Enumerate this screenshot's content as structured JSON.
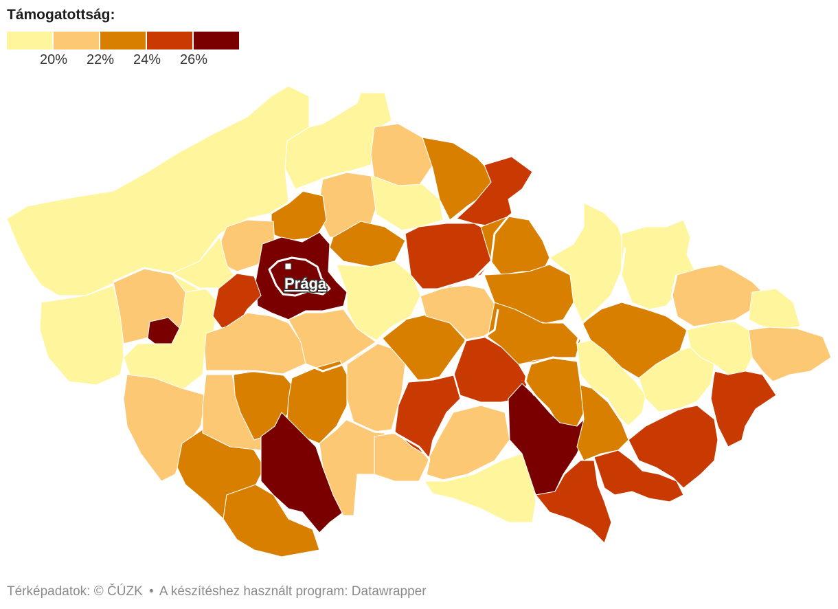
{
  "legend": {
    "title": "Támogatottság:",
    "colors": [
      "#fff59d",
      "#fdc874",
      "#d97f00",
      "#c83a02",
      "#7a0000"
    ],
    "labels": [
      "20%",
      "22%",
      "24%",
      "26%"
    ]
  },
  "map": {
    "capital_label": "Prága"
  },
  "footer": {
    "credit": "Térképadatok: © ČÚZK",
    "separator": "•",
    "tool": "A készítéshez használt program: Datawrapper"
  }
}
